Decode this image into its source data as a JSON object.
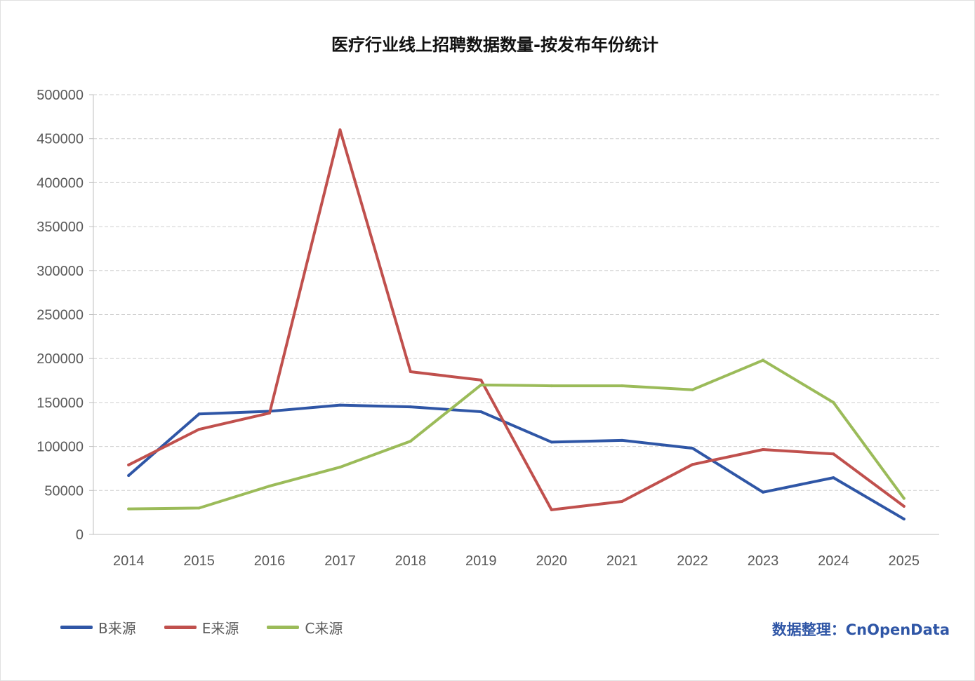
{
  "chart_data": {
    "type": "line",
    "title": "医疗行业线上招聘数据数量-按发布年份统计",
    "categories": [
      "2014",
      "2015",
      "2016",
      "2017",
      "2018",
      "2019",
      "2020",
      "2021",
      "2022",
      "2023",
      "2024",
      "2025"
    ],
    "ylim": [
      0,
      500000
    ],
    "yticks": [
      0,
      50000,
      100000,
      150000,
      200000,
      250000,
      300000,
      350000,
      400000,
      450000,
      500000
    ],
    "grid": true,
    "legend_position": "bottom-left",
    "series": [
      {
        "name": "B来源",
        "color": "#2f56a6",
        "values": [
          67000,
          137000,
          140000,
          147000,
          145000,
          139500,
          105000,
          107000,
          98000,
          48000,
          64500,
          17500
        ]
      },
      {
        "name": "E来源",
        "color": "#c0504d",
        "values": [
          79000,
          119500,
          138000,
          460000,
          185000,
          175500,
          28000,
          37500,
          79500,
          96500,
          91500,
          32000
        ]
      },
      {
        "name": "C来源",
        "color": "#9bbb59",
        "values": [
          29000,
          30000,
          55000,
          76500,
          106000,
          170000,
          169000,
          169000,
          164500,
          198000,
          150000,
          41000
        ]
      }
    ]
  },
  "credit": "数据整理：CnOpenData"
}
